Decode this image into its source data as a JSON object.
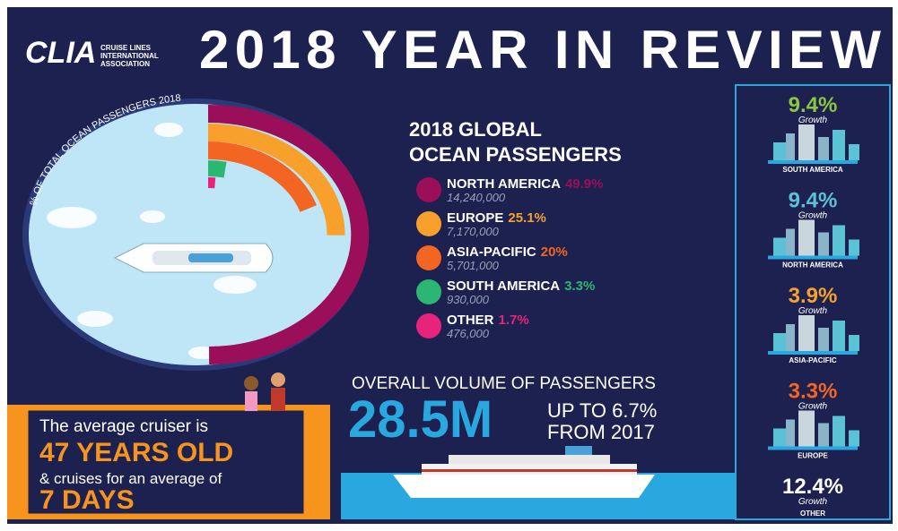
{
  "header": {
    "logo": "CLIA",
    "logo_subtitle": [
      "CRUISE LINES",
      "INTERNATIONAL",
      "ASSOCIATION"
    ],
    "title": "2018 YEAR IN REVIEW"
  },
  "circle_caption": "% OF TOTAL OCEAN PASSENGERS 2018",
  "passengers": {
    "title": [
      "2018 GLOBAL",
      "OCEAN PASSENGERS"
    ],
    "regions": [
      {
        "name": "NORTH AMERICA",
        "share": 49.9,
        "share_label": "49.9%",
        "count": "14,240,000",
        "color": "#9b0e5a"
      },
      {
        "name": "EUROPE",
        "share": 25.1,
        "share_label": "25.1%",
        "count": "7,170,000",
        "color": "#f7a02c"
      },
      {
        "name": "ASIA-PACIFIC",
        "share": 20,
        "share_label": "20%",
        "count": "5,701,000",
        "color": "#f26522"
      },
      {
        "name": "SOUTH AMERICA",
        "share": 3.3,
        "share_label": "3.3%",
        "count": "930,000",
        "color": "#2bb673"
      },
      {
        "name": "OTHER",
        "share": 1.7,
        "share_label": "1.7%",
        "count": "476,000",
        "color": "#e8237b"
      }
    ]
  },
  "volume": {
    "heading": "OVERALL VOLUME OF PASSENGERS",
    "total": "28.5M",
    "change": [
      "UP TO 6.7%",
      "FROM 2017"
    ]
  },
  "cruiser": {
    "line1": "The average cruiser is",
    "age": "47 YEARS OLD",
    "line2": "& cruises for an average of",
    "days": "7 DAYS"
  },
  "growth": {
    "word": "Growth",
    "items": [
      {
        "value": "9.4%",
        "region": "SOUTH AMERICA",
        "color": "#8dc63f"
      },
      {
        "value": "9.4%",
        "region": "NORTH AMERICA",
        "color": "#5bc2d6"
      },
      {
        "value": "3.9%",
        "region": "ASIA-PACIFIC",
        "color": "#f7a02c"
      },
      {
        "value": "3.3%",
        "region": "EUROPE",
        "color": "#f26522"
      },
      {
        "value": "12.4%",
        "region": "OTHER",
        "color": "#ffffff"
      }
    ]
  }
}
